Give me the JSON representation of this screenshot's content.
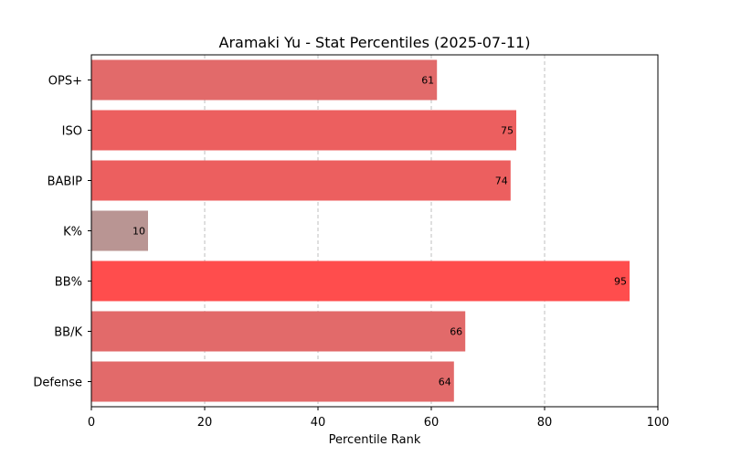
{
  "chart_data": {
    "type": "bar",
    "orientation": "horizontal",
    "title": "Aramaki Yu - Stat Percentiles (2025-07-11)",
    "xlabel": "Percentile Rank",
    "ylabel": "",
    "xlim": [
      0,
      100
    ],
    "xticks": [
      0,
      20,
      40,
      60,
      80,
      100
    ],
    "grid": "x-dashed",
    "categories": [
      "OPS+",
      "ISO",
      "BABIP",
      "K%",
      "BB%",
      "BB/K",
      "Defense"
    ],
    "values": [
      61,
      75,
      74,
      10,
      95,
      66,
      64
    ],
    "colors": [
      "#e26a6a",
      "#ec5f5f",
      "#ec5f5f",
      "#b99593",
      "#ff4d4d",
      "#e26a6a",
      "#e26a6a"
    ]
  }
}
